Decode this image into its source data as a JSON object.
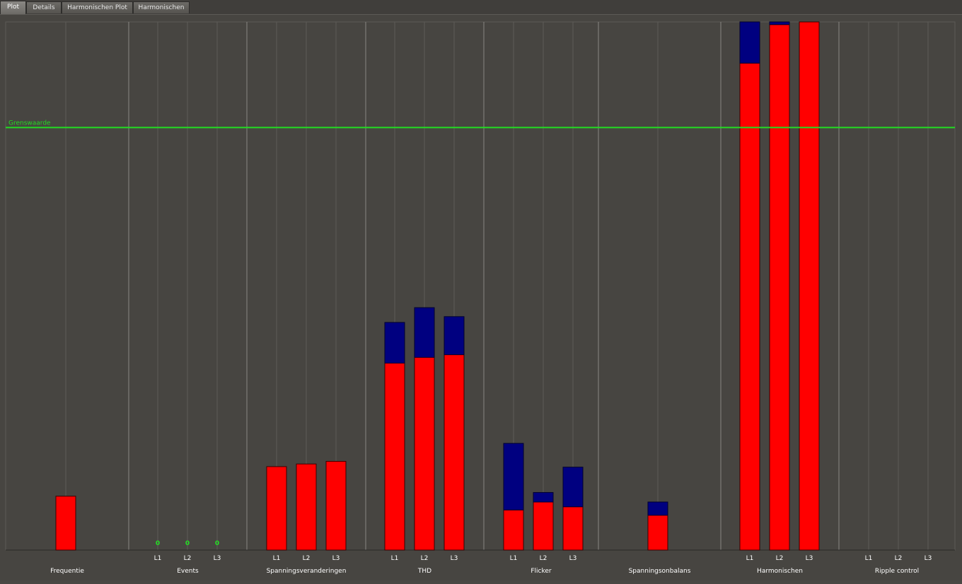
{
  "tabs": [
    {
      "label": "Plot",
      "active": true
    },
    {
      "label": "Details",
      "active": false
    },
    {
      "label": "Harmonischen Plot",
      "active": false
    },
    {
      "label": "Harmonischen",
      "active": false
    }
  ],
  "colors": {
    "red": "#ff0000",
    "blue": "#000080",
    "limit": "#22dd22",
    "zero_label": "#22dd22",
    "separator": "#8a8884",
    "subgrid": "#5e5c58",
    "text": "#ffffff"
  },
  "chart_data": {
    "type": "bar",
    "stacked": true,
    "ylim": [
      0,
      100
    ],
    "limit_line": {
      "label": "Grenswaarde",
      "value": 80
    },
    "series": [
      {
        "name": "",
        "color": "#ff0000"
      },
      {
        "name": "",
        "color": "#000080"
      }
    ],
    "groups": [
      {
        "name": "Frequentie",
        "phases": [
          ""
        ],
        "values": [
          [
            10.2,
            0
          ]
        ]
      },
      {
        "name": "Events",
        "phases": [
          "L1",
          "L2",
          "L3"
        ],
        "values": [
          [
            0,
            0
          ],
          [
            0,
            0
          ],
          [
            0,
            0
          ]
        ],
        "zero_labels": [
          "0",
          "0",
          "0"
        ]
      },
      {
        "name": "Spanningsveranderingen",
        "phases": [
          "L1",
          "L2",
          "L3"
        ],
        "values": [
          [
            15.8,
            0
          ],
          [
            16.3,
            0
          ],
          [
            16.8,
            0
          ]
        ]
      },
      {
        "name": "THD",
        "phases": [
          "L1",
          "L2",
          "L3"
        ],
        "values": [
          [
            35.4,
            7.7
          ],
          [
            36.5,
            9.4
          ],
          [
            37.0,
            7.2
          ]
        ]
      },
      {
        "name": "Flicker",
        "phases": [
          "L1",
          "L2",
          "L3"
        ],
        "values": [
          [
            7.6,
            12.6
          ],
          [
            9.1,
            1.8
          ],
          [
            8.2,
            7.5
          ]
        ]
      },
      {
        "name": "Spanningsonbalans",
        "phases": [
          ""
        ],
        "values": [
          [
            6.6,
            2.5
          ]
        ]
      },
      {
        "name": "Harmonischen",
        "phases": [
          "L1",
          "L2",
          "L3"
        ],
        "values": [
          [
            92.2,
            7.8
          ],
          [
            99.5,
            0.5
          ],
          [
            100,
            0
          ]
        ]
      },
      {
        "name": "Ripple control",
        "phases": [
          "L1",
          "L2",
          "L3"
        ],
        "values": [
          [
            0,
            0
          ],
          [
            0,
            0
          ],
          [
            0,
            0
          ]
        ]
      }
    ]
  }
}
